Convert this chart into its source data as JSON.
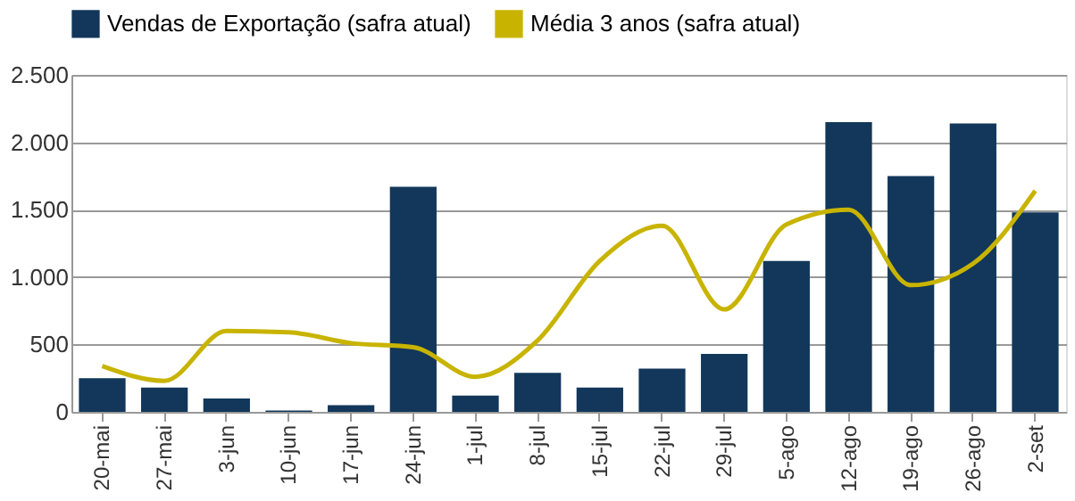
{
  "chart_data": {
    "type": "bar",
    "categories": [
      "20-mai",
      "27-mai",
      "3-jun",
      "10-jun",
      "17-jun",
      "24-jun",
      "1-jul",
      "8-jul",
      "15-jul",
      "22-jul",
      "29-jul",
      "5-ago",
      "12-ago",
      "19-ago",
      "26-ago",
      "2-set"
    ],
    "series": [
      {
        "name": "Vendas de Exportação (safra atual)",
        "color": "#12375a",
        "values": [
          250,
          180,
          100,
          10,
          50,
          1670,
          120,
          290,
          180,
          320,
          430,
          1120,
          2150,
          1750,
          2140,
          1480
        ]
      },
      {
        "name": "Média 3 anos (safra atual)",
        "type": "line",
        "color": "#c8b400",
        "values": [
          340,
          230,
          600,
          590,
          510,
          480,
          260,
          530,
          1120,
          1380,
          760,
          1390,
          1500,
          940,
          1100,
          1640
        ]
      }
    ],
    "ylim": [
      0,
      2500
    ],
    "yticks": [
      0,
      {
        "value": 500,
        "label": "500"
      },
      {
        "value": 1000,
        "label": "1.000"
      },
      {
        "value": 1500,
        "label": "1.500"
      },
      {
        "value": 2000,
        "label": "2.000"
      },
      {
        "value": 2500,
        "label": "2.500"
      }
    ],
    "grid": "y",
    "legend": "top"
  }
}
